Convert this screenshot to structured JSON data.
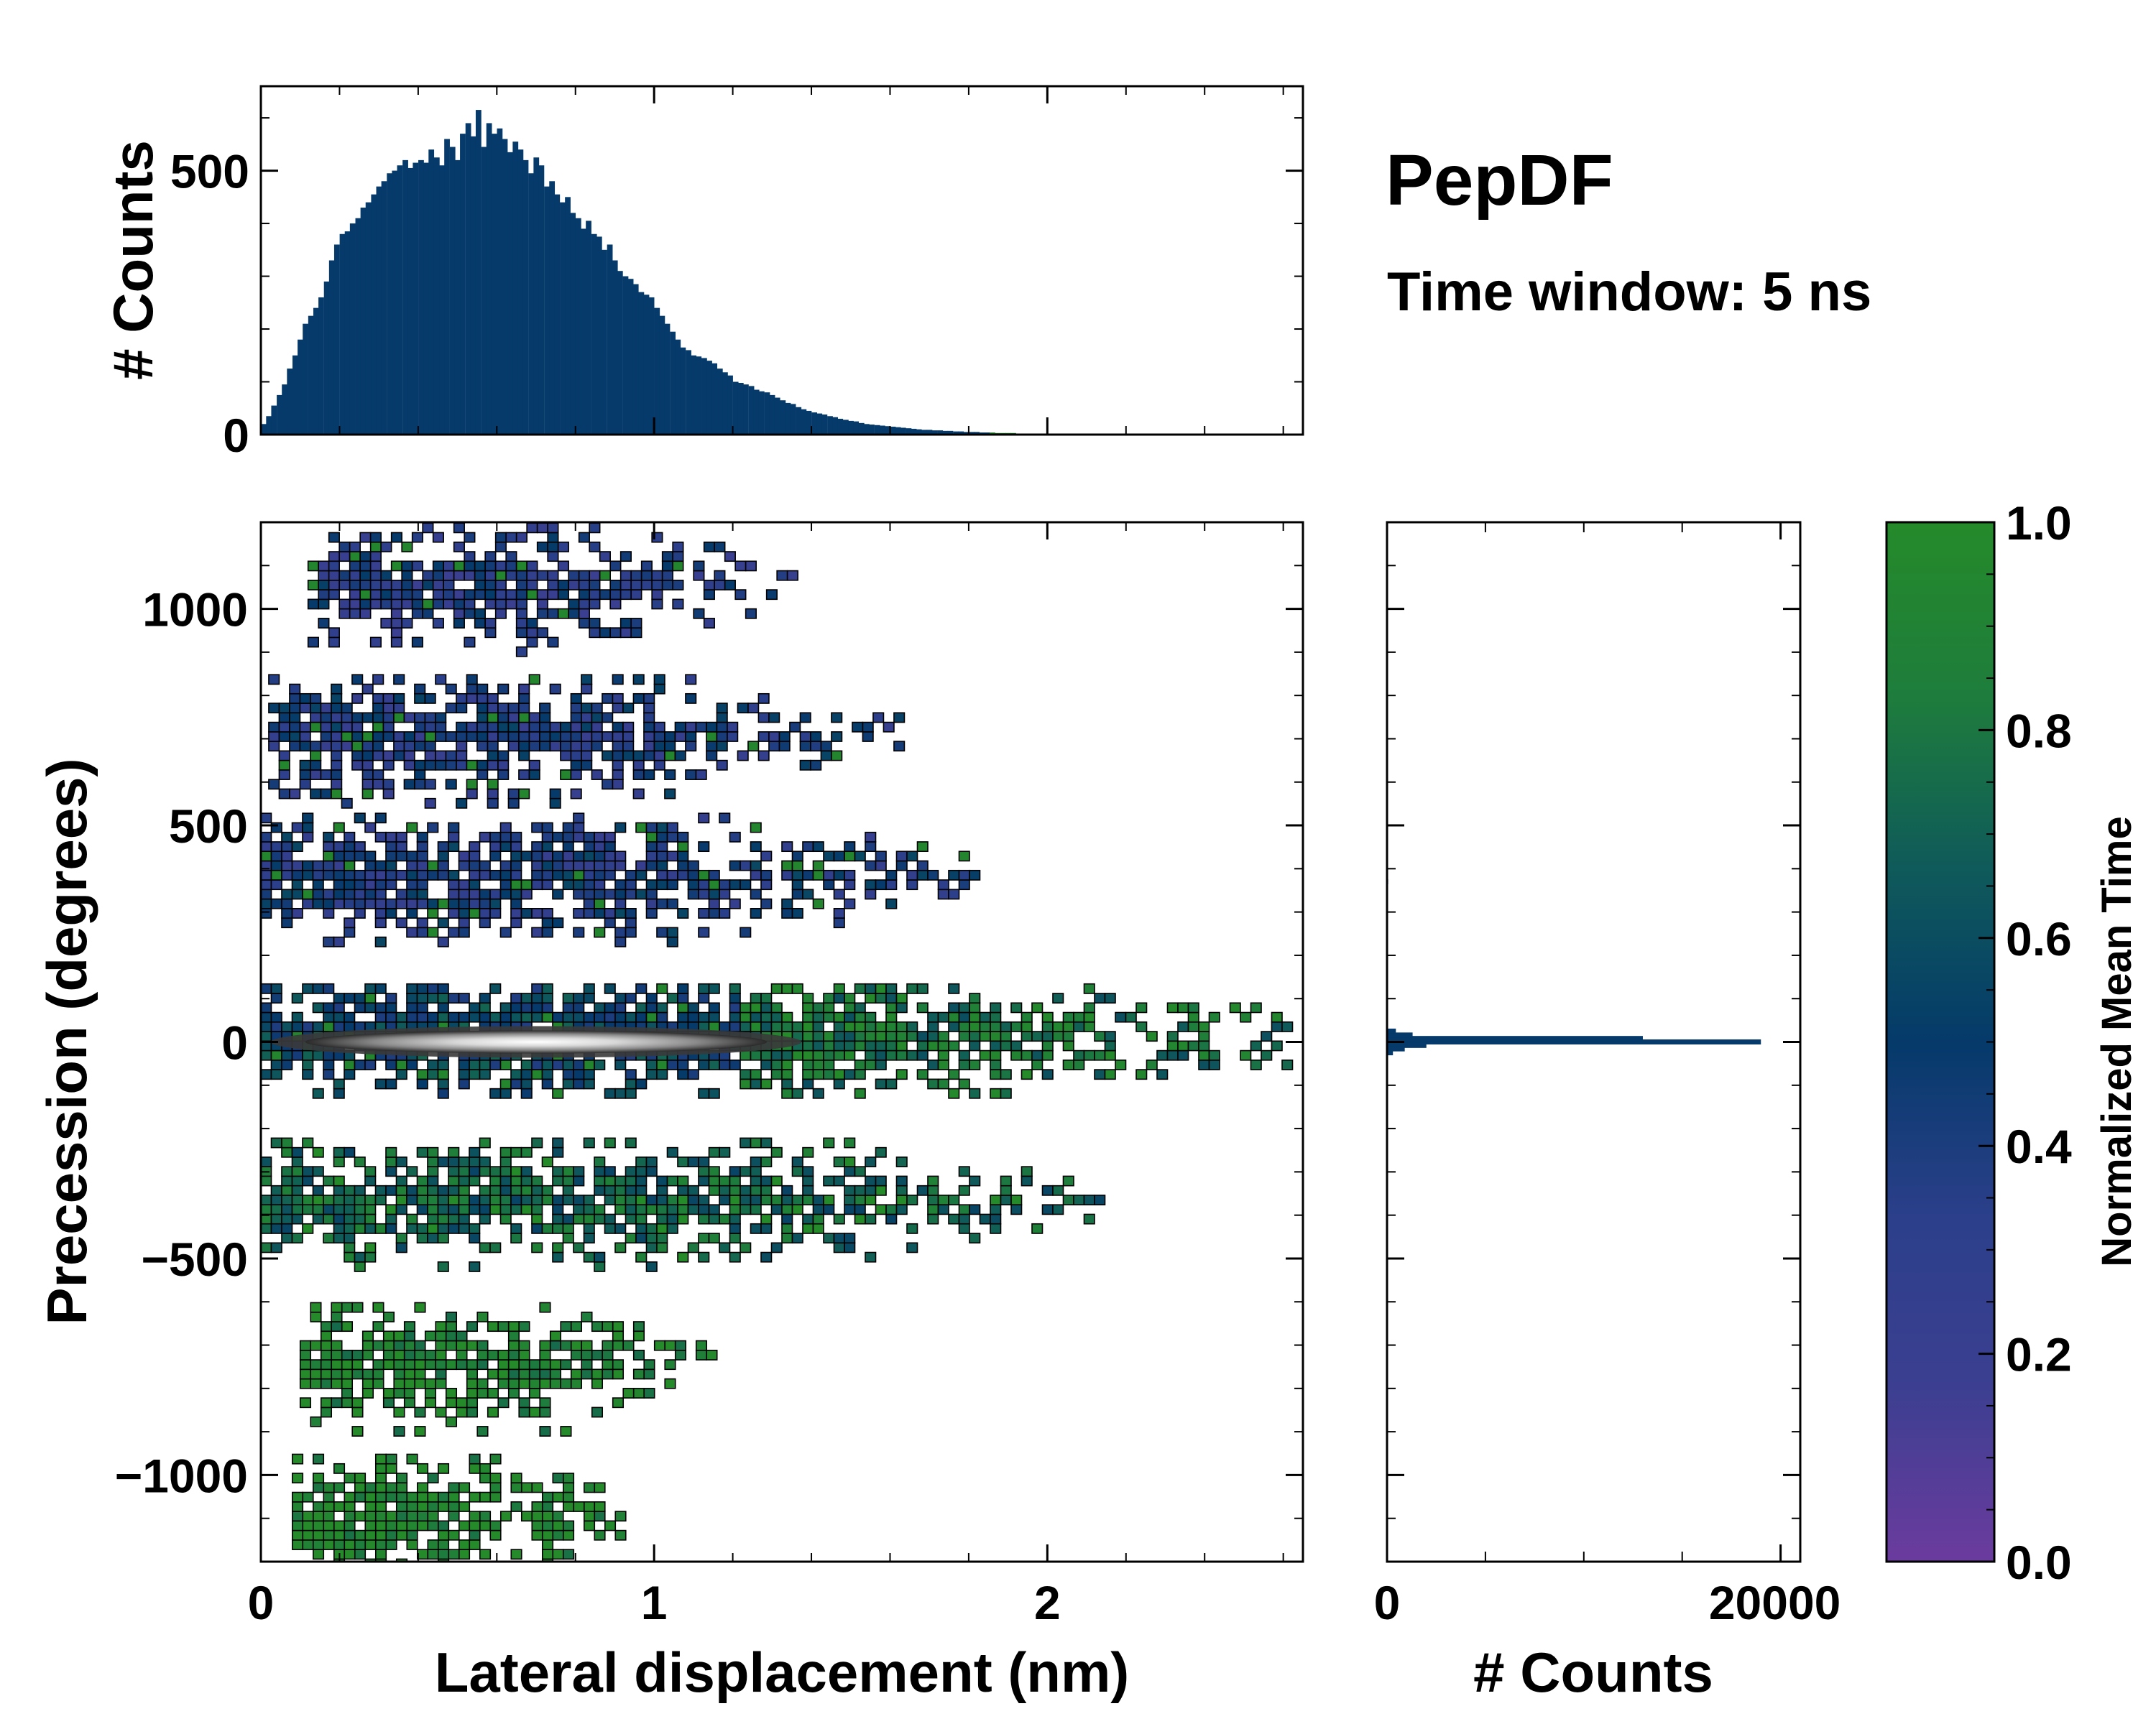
{
  "title": "PepDF",
  "subtitle": "Time window: 5 ns",
  "chart_data": [
    {
      "id": "top_histogram",
      "type": "bar",
      "description_axis": "x shared with main panel (Lateral displacement, nm)",
      "ylabel": "# Counts",
      "xlim": [
        0,
        2.65
      ],
      "ylim": [
        0,
        660
      ],
      "yticks": [
        0,
        500
      ],
      "ytick_labels": [
        "0",
        "500"
      ],
      "bin_width": 0.0133,
      "x": [
        0.007,
        0.02,
        0.033,
        0.047,
        0.06,
        0.073,
        0.087,
        0.1,
        0.113,
        0.127,
        0.14,
        0.153,
        0.167,
        0.18,
        0.193,
        0.207,
        0.22,
        0.233,
        0.247,
        0.26,
        0.273,
        0.287,
        0.3,
        0.313,
        0.327,
        0.34,
        0.353,
        0.367,
        0.38,
        0.393,
        0.407,
        0.42,
        0.433,
        0.447,
        0.46,
        0.473,
        0.487,
        0.5,
        0.513,
        0.527,
        0.54,
        0.553,
        0.567,
        0.58,
        0.593,
        0.607,
        0.62,
        0.633,
        0.647,
        0.66,
        0.673,
        0.687,
        0.7,
        0.713,
        0.727,
        0.74,
        0.753,
        0.767,
        0.78,
        0.793,
        0.807,
        0.82,
        0.833,
        0.847,
        0.86,
        0.873,
        0.887,
        0.9,
        0.913,
        0.927,
        0.94,
        0.953,
        0.967,
        0.98,
        0.993,
        1.007,
        1.02,
        1.033,
        1.047,
        1.06,
        1.073,
        1.087,
        1.1,
        1.113,
        1.127,
        1.14,
        1.153,
        1.167,
        1.18,
        1.193,
        1.207,
        1.22,
        1.233,
        1.247,
        1.26,
        1.273,
        1.287,
        1.3,
        1.313,
        1.327,
        1.34,
        1.353,
        1.367,
        1.38,
        1.393,
        1.407,
        1.42,
        1.433,
        1.447,
        1.46,
        1.473,
        1.487,
        1.5,
        1.513,
        1.527,
        1.54,
        1.553,
        1.567,
        1.58,
        1.593,
        1.607,
        1.62,
        1.633,
        1.647,
        1.66,
        1.673,
        1.687,
        1.7,
        1.713,
        1.727,
        1.74,
        1.753,
        1.767,
        1.78,
        1.793,
        1.807,
        1.82,
        1.833,
        1.847,
        1.86,
        1.873,
        1.887,
        1.9,
        1.913,
        1.927,
        1.94,
        1.953,
        1.967,
        1.98,
        1.993,
        2.007,
        2.02,
        2.033,
        2.047,
        2.06,
        2.073,
        2.087,
        2.1,
        2.113,
        2.127,
        2.14,
        2.153,
        2.167,
        2.18,
        2.193,
        2.207,
        2.22,
        2.233,
        2.247,
        2.26
      ],
      "values": [
        20,
        35,
        55,
        75,
        95,
        125,
        150,
        180,
        210,
        225,
        240,
        260,
        290,
        330,
        360,
        380,
        385,
        400,
        410,
        430,
        440,
        455,
        470,
        480,
        495,
        500,
        510,
        520,
        505,
        515,
        520,
        515,
        540,
        525,
        510,
        560,
        545,
        520,
        570,
        590,
        565,
        615,
        545,
        590,
        570,
        580,
        560,
        535,
        555,
        540,
        520,
        495,
        525,
        510,
        470,
        480,
        455,
        440,
        450,
        420,
        410,
        390,
        405,
        380,
        375,
        350,
        360,
        330,
        310,
        300,
        295,
        285,
        270,
        265,
        260,
        240,
        225,
        210,
        195,
        180,
        165,
        160,
        150,
        148,
        145,
        140,
        135,
        125,
        118,
        112,
        100,
        98,
        95,
        92,
        85,
        82,
        80,
        75,
        70,
        65,
        60,
        58,
        52,
        48,
        45,
        42,
        40,
        38,
        35,
        33,
        30,
        28,
        26,
        25,
        22,
        20,
        19,
        18,
        17,
        16,
        15,
        14,
        13,
        12,
        11,
        10,
        9,
        9,
        8,
        8,
        7,
        7,
        6,
        6,
        5,
        5,
        5,
        4,
        4,
        4,
        3,
        3,
        3,
        3,
        2,
        2,
        2,
        2,
        2,
        2,
        1,
        1,
        1,
        1,
        1,
        1,
        1,
        1,
        1,
        1,
        1,
        1,
        1,
        1,
        1,
        1,
        1,
        1,
        1,
        1
      ],
      "colors": {
        "bar": "#053a6a",
        "late_bar": "#2a8a2e"
      }
    },
    {
      "id": "main_heatmap",
      "type": "heatmap",
      "xlabel": "Lateral displacement (nm)",
      "ylabel": "Precession (degrees)",
      "xlim": [
        0,
        2.65
      ],
      "ylim": [
        -1200,
        1200
      ],
      "xticks": [
        0,
        1,
        2
      ],
      "xtick_labels": [
        "0",
        "1",
        "2"
      ],
      "yticks": [
        1000,
        500,
        0,
        -500,
        -1000
      ],
      "ytick_labels": [
        "1000",
        "500",
        "0",
        "−500",
        "−1000"
      ],
      "colorbar_value": "Normalized Mean Time",
      "bands": [
        {
          "center": 1040,
          "xmin": 0.12,
          "xmax": 1.35,
          "mean_time": 0.35
        },
        {
          "center": 690,
          "xmin": 0.02,
          "xmax": 1.62,
          "mean_time": 0.38
        },
        {
          "center": 370,
          "xmin": 0.0,
          "xmax": 1.85,
          "mean_time": 0.4
        },
        {
          "center": 0,
          "xmin": 0.0,
          "xmax": 2.6,
          "mean_time": 0.55
        },
        {
          "center": -380,
          "xmin": 0.0,
          "xmax": 2.15,
          "mean_time": 0.72
        },
        {
          "center": -760,
          "xmin": 0.1,
          "xmax": 1.15,
          "mean_time": 0.92
        },
        {
          "center": -1110,
          "xmin": 0.08,
          "xmax": 0.98,
          "mean_time": 0.95
        }
      ],
      "density_core": {
        "center_x": 0.7,
        "center_y": 0,
        "span_x": [
          0.05,
          1.4
        ],
        "span_y": [
          -30,
          30
        ]
      }
    },
    {
      "id": "right_histogram",
      "type": "bar",
      "orientation": "horizontal",
      "xlabel": "# Counts",
      "xlim": [
        0,
        21000
      ],
      "xticks": [
        0,
        20000
      ],
      "xtick_labels": [
        "0",
        "20000"
      ],
      "ylim": [
        -1200,
        1200
      ],
      "bars": [
        {
          "y": 0,
          "count": 19000
        },
        {
          "y": 8,
          "count": 13000
        },
        {
          "y": -8,
          "count": 2000
        },
        {
          "y": 16,
          "count": 1300
        },
        {
          "y": -16,
          "count": 900
        },
        {
          "y": 25,
          "count": 450
        },
        {
          "y": -25,
          "count": 300
        },
        {
          "y": 370,
          "count": 60
        },
        {
          "y": 460,
          "count": 40
        },
        {
          "y": 690,
          "count": 30
        },
        {
          "y": -380,
          "count": 30
        }
      ],
      "colors": {
        "bar": "#053a6a"
      }
    },
    {
      "id": "colorbar",
      "type": "colorbar",
      "label": "Normalized Mean Time",
      "range": [
        0.0,
        1.0
      ],
      "ticks": [
        0.0,
        0.2,
        0.4,
        0.6,
        0.8,
        1.0
      ],
      "tick_labels": [
        "0.0",
        "0.2",
        "0.4",
        "0.6",
        "0.8",
        "1.0"
      ],
      "colormap": [
        "#6b3b9e",
        "#3c3f91",
        "#2b3f8a",
        "#053a6a",
        "#0f5a5a",
        "#1e7d3c",
        "#258a2a"
      ]
    }
  ]
}
